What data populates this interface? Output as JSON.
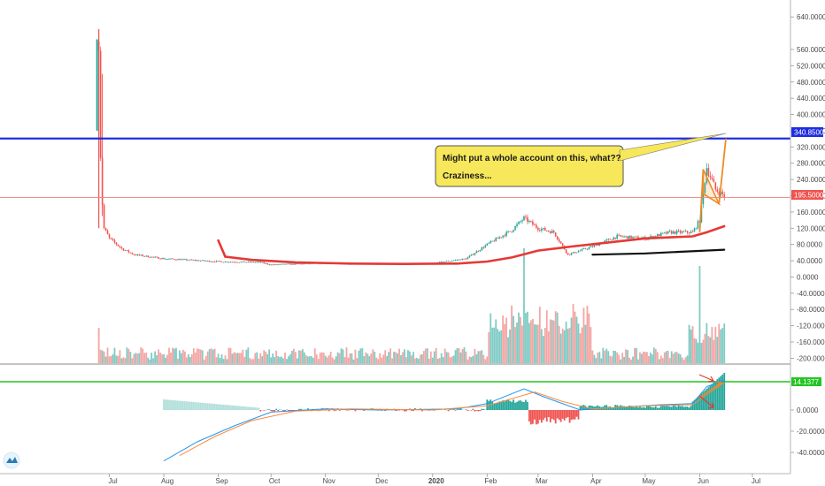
{
  "chart_data": {
    "type": "candlestick",
    "price_panel": {
      "y_ticks": [
        "640.0000",
        "560.0000",
        "520.0000",
        "480.0000",
        "440.0000",
        "400.0000",
        "360.0000",
        "320.0000",
        "280.0000",
        "240.0000",
        "200.0000",
        "160.0000",
        "120.0000",
        "80.0000",
        "40.0000",
        "0.0000",
        "-40.0000",
        "-80.0000",
        "-120.0000",
        "-160.0000",
        "-200.0000"
      ],
      "ylim": [
        -210,
        660
      ],
      "hline_blue": {
        "value": 340.85,
        "label": "340.8500",
        "color": "#1f2de0"
      },
      "hline_red": {
        "value": 195.5,
        "label": "195.5000",
        "color": "#f08080"
      },
      "callout": {
        "lines": [
          "Might put a whole account on this, what??",
          "Craziness..."
        ],
        "bg": "#f7e75a"
      },
      "ohlc_anchor": [
        [
          "2019-06-25",
          580
        ],
        [
          "2019-06-26",
          300
        ],
        [
          "2019-06-27",
          180
        ],
        [
          "2019-06-28",
          120
        ],
        [
          "2019-07-01",
          95
        ],
        [
          "2019-07-08",
          70
        ],
        [
          "2019-07-15",
          55
        ],
        [
          "2019-08-01",
          45
        ],
        [
          "2019-09-01",
          38
        ],
        [
          "2019-09-25",
          36
        ],
        [
          "2019-10-01",
          30
        ],
        [
          "2019-11-01",
          34
        ],
        [
          "2019-12-01",
          32
        ],
        [
          "2019-12-31",
          33
        ],
        [
          "2020-01-20",
          45
        ],
        [
          "2020-02-01",
          80
        ],
        [
          "2020-02-15",
          115
        ],
        [
          "2020-02-22",
          145
        ],
        [
          "2020-03-01",
          120
        ],
        [
          "2020-03-10",
          110
        ],
        [
          "2020-03-18",
          55
        ],
        [
          "2020-04-01",
          75
        ],
        [
          "2020-04-15",
          100
        ],
        [
          "2020-05-01",
          95
        ],
        [
          "2020-05-15",
          110
        ],
        [
          "2020-05-28",
          110
        ],
        [
          "2020-06-01",
          140
        ],
        [
          "2020-06-05",
          270
        ],
        [
          "2020-06-10",
          215
        ],
        [
          "2020-06-15",
          200
        ]
      ],
      "ma_red": [
        [
          "2019-09-01",
          90
        ],
        [
          "2019-09-05",
          50
        ],
        [
          "2019-09-20",
          42
        ],
        [
          "2019-10-15",
          36
        ],
        [
          "2019-11-15",
          33
        ],
        [
          "2019-12-15",
          32
        ],
        [
          "2020-01-15",
          33
        ],
        [
          "2020-02-01",
          38
        ],
        [
          "2020-02-15",
          48
        ],
        [
          "2020-03-01",
          65
        ],
        [
          "2020-03-20",
          75
        ],
        [
          "2020-04-10",
          85
        ],
        [
          "2020-05-01",
          95
        ],
        [
          "2020-05-28",
          100
        ],
        [
          "2020-06-05",
          110
        ],
        [
          "2020-06-15",
          125
        ]
      ],
      "ma_black": [
        [
          "2020-04-01",
          55
        ],
        [
          "2020-05-01",
          58
        ],
        [
          "2020-06-15",
          67
        ]
      ],
      "flag_color": "#f08a24"
    },
    "volume": {
      "spikes": [
        [
          "2019-06-25",
          40
        ],
        [
          "2020-02-22",
          130
        ],
        [
          "2020-06-01",
          110
        ]
      ]
    },
    "macd_panel": {
      "y_ticks": [
        "0.0000",
        "-20.0000",
        "-40.0000"
      ],
      "hline_green": {
        "label": "14.1377",
        "color": "#22c522"
      }
    },
    "x_ticks": [
      "Jul",
      "Aug",
      "Sep",
      "Oct",
      "Nov",
      "Dec",
      "2020",
      "Feb",
      "Mar",
      "Apr",
      "May",
      "Jun",
      "Jul"
    ],
    "colors": {
      "up": "#26a69a",
      "down": "#ef5350",
      "ma": "#e53935",
      "macd": "#2196f3",
      "signal": "#ff8a3c"
    }
  }
}
